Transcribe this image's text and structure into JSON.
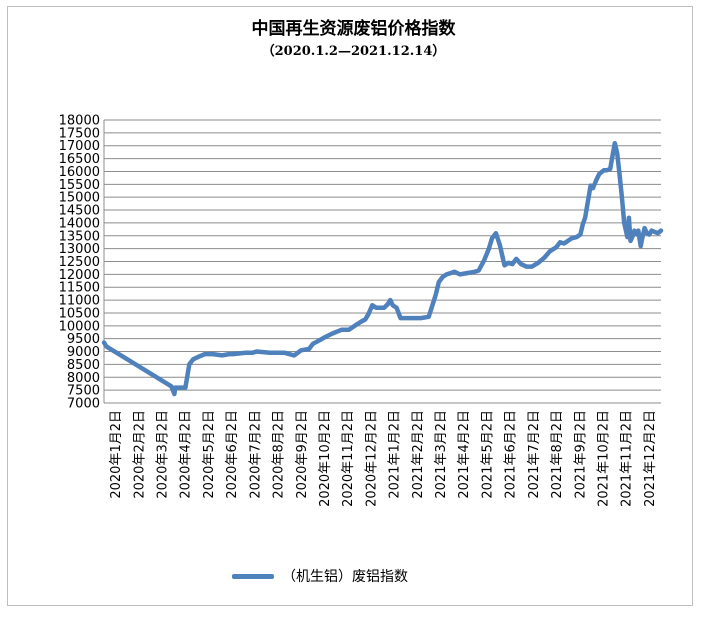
{
  "chart_data": {
    "type": "line",
    "title": "中国再生资源废铝价格指数",
    "subtitle": "（2020.1.2—2021.12.14）",
    "xlabel": "",
    "ylabel": "",
    "ylim": [
      7000,
      18000
    ],
    "y_ticks": [
      7000,
      7500,
      8000,
      8500,
      9000,
      9500,
      10000,
      10500,
      11000,
      11500,
      12000,
      12500,
      13000,
      13500,
      14000,
      14500,
      15000,
      15500,
      16000,
      16500,
      17000,
      17500,
      18000
    ],
    "x_tick_labels": [
      "2020年1月2日",
      "2020年2月2日",
      "2020年3月2日",
      "2020年4月2日",
      "2020年5月2日",
      "2020年6月2日",
      "2020年7月2日",
      "2020年8月2日",
      "2020年9月2日",
      "2020年10月2日",
      "2020年11月2日",
      "2020年12月2日",
      "2021年1月2日",
      "2021年2月2日",
      "2021年3月2日",
      "2021年4月2日",
      "2021年5月2日",
      "2021年6月2日",
      "2021年7月2日",
      "2021年8月2日",
      "2021年9月2日",
      "2021年10月2日",
      "2021年11月2日",
      "2021年12月2日"
    ],
    "grid": true,
    "legend_position": "bottom",
    "series": [
      {
        "name": "（机生铝）废铝指数",
        "color": "#4f81bd",
        "x": [
          "2020-01-02",
          "2020-01-05",
          "2020-03-28",
          "2020-04-01",
          "2020-04-02",
          "2020-04-05",
          "2020-04-10",
          "2020-04-15",
          "2020-04-20",
          "2020-04-25",
          "2020-05-02",
          "2020-05-10",
          "2020-05-15",
          "2020-05-20",
          "2020-06-01",
          "2020-06-10",
          "2020-06-15",
          "2020-07-01",
          "2020-07-10",
          "2020-07-15",
          "2020-08-01",
          "2020-08-10",
          "2020-08-20",
          "2020-09-01",
          "2020-09-10",
          "2020-09-20",
          "2020-09-25",
          "2020-10-01",
          "2020-10-10",
          "2020-10-20",
          "2020-11-01",
          "2020-11-10",
          "2020-11-20",
          "2020-11-25",
          "2020-12-01",
          "2020-12-05",
          "2020-12-10",
          "2020-12-15",
          "2020-12-20",
          "2020-12-25",
          "2020-12-30",
          "2021-01-02",
          "2021-01-05",
          "2021-01-10",
          "2021-01-15",
          "2021-02-02",
          "2021-02-10",
          "2021-02-20",
          "2021-03-01",
          "2021-03-05",
          "2021-03-10",
          "2021-03-15",
          "2021-03-20",
          "2021-03-25",
          "2021-04-01",
          "2021-04-10",
          "2021-04-20",
          "2021-04-25",
          "2021-05-02",
          "2021-05-08",
          "2021-05-12",
          "2021-05-17",
          "2021-05-22",
          "2021-05-28",
          "2021-06-02",
          "2021-06-07",
          "2021-06-12",
          "2021-06-18",
          "2021-06-25",
          "2021-07-02",
          "2021-07-10",
          "2021-07-18",
          "2021-07-25",
          "2021-08-02",
          "2021-08-07",
          "2021-08-12",
          "2021-08-17",
          "2021-08-22",
          "2021-08-28",
          "2021-09-02",
          "2021-09-05",
          "2021-09-08",
          "2021-09-12",
          "2021-09-15",
          "2021-09-18",
          "2021-09-22",
          "2021-09-26",
          "2021-10-02",
          "2021-10-06",
          "2021-10-10",
          "2021-10-13",
          "2021-10-16",
          "2021-10-19",
          "2021-10-22",
          "2021-10-25",
          "2021-10-28",
          "2021-11-01",
          "2021-11-03",
          "2021-11-05",
          "2021-11-08",
          "2021-11-10",
          "2021-11-13",
          "2021-11-15",
          "2021-11-18",
          "2021-11-20",
          "2021-11-23",
          "2021-11-26",
          "2021-11-29",
          "2021-12-02",
          "2021-12-06",
          "2021-12-10",
          "2021-12-14"
        ],
        "values": [
          9350,
          9200,
          7650,
          7350,
          7600,
          7600,
          7600,
          7600,
          8500,
          8700,
          8800,
          8900,
          8900,
          8900,
          8850,
          8900,
          8900,
          8950,
          8950,
          9000,
          8950,
          8950,
          8950,
          8850,
          9050,
          9100,
          9300,
          9400,
          9550,
          9700,
          9850,
          9850,
          10050,
          10150,
          10250,
          10450,
          10800,
          10700,
          10700,
          10700,
          10850,
          11000,
          10800,
          10700,
          10300,
          10300,
          10300,
          10350,
          11200,
          11700,
          11900,
          12000,
          12050,
          12100,
          12000,
          12050,
          12100,
          12150,
          12550,
          13000,
          13400,
          13600,
          13150,
          12350,
          12450,
          12400,
          12600,
          12400,
          12300,
          12300,
          12450,
          12650,
          12900,
          13050,
          13250,
          13200,
          13300,
          13400,
          13450,
          13550,
          13950,
          14200,
          14900,
          15450,
          15350,
          15650,
          15900,
          16050,
          16050,
          16100,
          16600,
          17100,
          16700,
          15900,
          15000,
          14000,
          13450,
          14200,
          13300,
          13500,
          13700,
          13550,
          13700,
          13100,
          13400,
          13800,
          13600,
          13550,
          13700,
          13650,
          13600,
          13700
        ]
      }
    ]
  }
}
